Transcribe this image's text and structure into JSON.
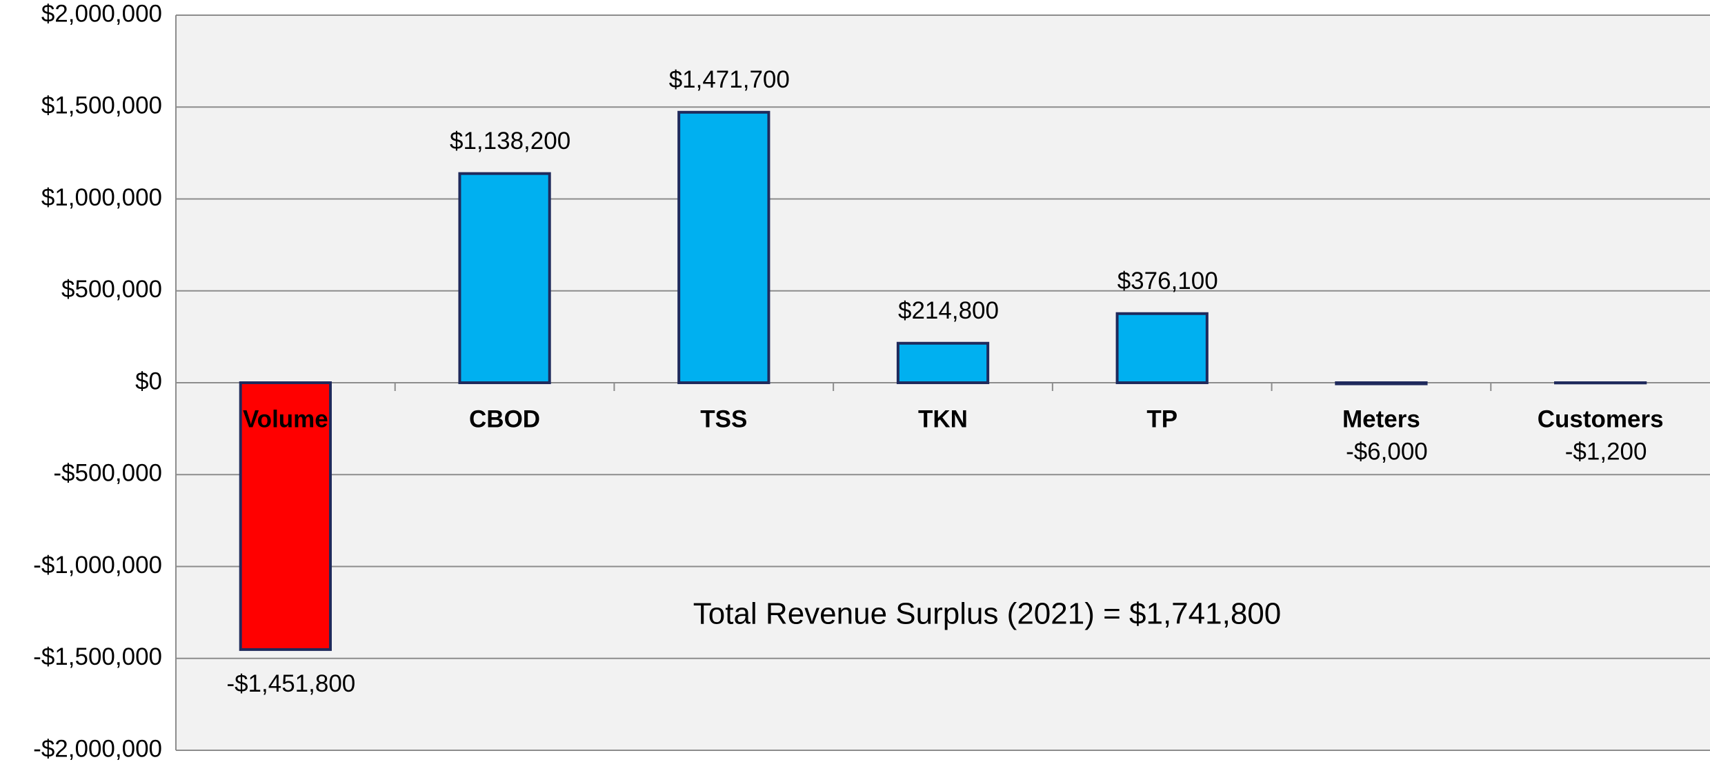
{
  "chart_data": {
    "type": "bar",
    "categories": [
      "Volume",
      "CBOD",
      "TSS",
      "TKN",
      "TP",
      "Meters",
      "Customers"
    ],
    "values": [
      -1451800,
      1138200,
      1471700,
      214800,
      376100,
      -6000,
      -1200
    ],
    "value_labels": [
      "-$1,451,800",
      "$1,138,200",
      "$1,471,700",
      "$214,800",
      "$376,100",
      "-$6,000",
      "-$1,200"
    ],
    "colors": [
      "#ff0000",
      "#00b0f0",
      "#00b0f0",
      "#00b0f0",
      "#00b0f0",
      "#00b0f0",
      "#00b0f0"
    ],
    "ylim": [
      -2000000,
      2000000
    ],
    "yticks": [
      {
        "value": -2000000,
        "label": "-$2,000,000"
      },
      {
        "value": -1500000,
        "label": "-$1,500,000"
      },
      {
        "value": -1000000,
        "label": "-$1,000,000"
      },
      {
        "value": -500000,
        "label": "-$500,000"
      },
      {
        "value": 0,
        "label": "$0"
      },
      {
        "value": 500000,
        "label": "$500,000"
      },
      {
        "value": 1000000,
        "label": "$1,000,000"
      },
      {
        "value": 1500000,
        "label": "$1,500,000"
      },
      {
        "value": 2000000,
        "label": "$2,000,000"
      }
    ],
    "grid": true,
    "annotation": "Total Revenue Surplus (2021)  = $1,741,800"
  }
}
